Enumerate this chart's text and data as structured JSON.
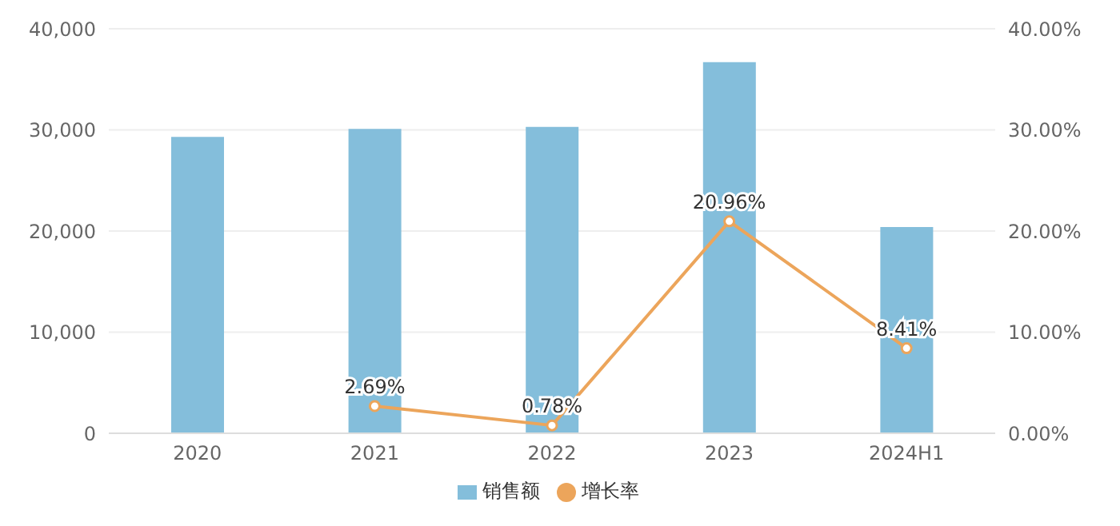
{
  "chart_data": {
    "type": "bar",
    "categories": [
      "2020",
      "2021",
      "2022",
      "2023",
      "2024H1"
    ],
    "series": [
      {
        "name": "销售额",
        "color": "#84bedb",
        "values": [
          29300,
          30100,
          30300,
          36700,
          20400
        ]
      },
      {
        "name": "增长率",
        "type": "line",
        "axis": "y2",
        "color": "#eca55b",
        "values": [
          null,
          2.69,
          0.78,
          20.96,
          8.41
        ],
        "value_labels": [
          null,
          "2.69%",
          "0.78%",
          "20.96%",
          "8.41%"
        ]
      }
    ],
    "ylim": [
      0,
      40000
    ],
    "yticks": [
      {
        "value": 0,
        "label": "0"
      },
      {
        "value": 10000,
        "label": "10,000"
      },
      {
        "value": 20000,
        "label": "20,000"
      },
      {
        "value": 30000,
        "label": "30,000"
      },
      {
        "value": 40000,
        "label": "40,000"
      }
    ],
    "y2lim": [
      0,
      40
    ],
    "y2ticks": [
      {
        "value": 0,
        "label": "0.00%"
      },
      {
        "value": 10,
        "label": "10.00%"
      },
      {
        "value": 20,
        "label": "20.00%"
      },
      {
        "value": 30,
        "label": "30.00%"
      },
      {
        "value": 40,
        "label": "40.00%"
      }
    ],
    "grid": "y",
    "legend": "bottom",
    "marker": "circle",
    "line_style": "solid"
  }
}
